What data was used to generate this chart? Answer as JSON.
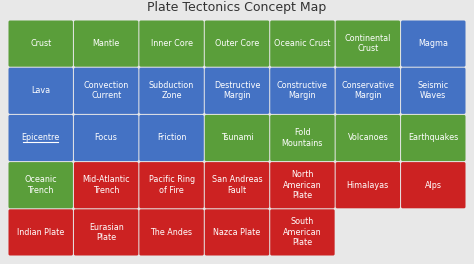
{
  "title": "Plate Tectonics Concept Map",
  "background_color": "#e8e8e8",
  "colors": {
    "green": "#5a9e3a",
    "blue": "#4472c4",
    "red": "#cc2222"
  },
  "rows": [
    {
      "items": [
        {
          "label": "Crust",
          "color": "green"
        },
        {
          "label": "Mantle",
          "color": "green"
        },
        {
          "label": "Inner Core",
          "color": "green"
        },
        {
          "label": "Outer Core",
          "color": "green"
        },
        {
          "label": "Oceanic Crust",
          "color": "green"
        },
        {
          "label": "Continental\nCrust",
          "color": "green"
        },
        {
          "label": "Magma",
          "color": "blue"
        }
      ]
    },
    {
      "items": [
        {
          "label": "Lava",
          "color": "blue"
        },
        {
          "label": "Convection\nCurrent",
          "color": "blue"
        },
        {
          "label": "Subduction\nZone",
          "color": "blue"
        },
        {
          "label": "Destructive\nMargin",
          "color": "blue"
        },
        {
          "label": "Constructive\nMargin",
          "color": "blue"
        },
        {
          "label": "Conservative\nMargin",
          "color": "blue"
        },
        {
          "label": "Seismic\nWaves",
          "color": "blue"
        }
      ]
    },
    {
      "items": [
        {
          "label": "Epicentre",
          "color": "blue",
          "underline": true
        },
        {
          "label": "Focus",
          "color": "blue"
        },
        {
          "label": "Friction",
          "color": "blue"
        },
        {
          "label": "Tsunami",
          "color": "green"
        },
        {
          "label": "Fold\nMountains",
          "color": "green"
        },
        {
          "label": "Volcanoes",
          "color": "green"
        },
        {
          "label": "Earthquakes",
          "color": "green"
        }
      ]
    },
    {
      "items": [
        {
          "label": "Oceanic\nTrench",
          "color": "green"
        },
        {
          "label": "Mid-Atlantic\nTrench",
          "color": "red"
        },
        {
          "label": "Pacific Ring\nof Fire",
          "color": "red"
        },
        {
          "label": "San Andreas\nFault",
          "color": "red"
        },
        {
          "label": "North\nAmerican\nPlate",
          "color": "red"
        },
        {
          "label": "Himalayas",
          "color": "red"
        },
        {
          "label": "Alps",
          "color": "red"
        }
      ]
    },
    {
      "items": [
        {
          "label": "Indian Plate",
          "color": "red"
        },
        {
          "label": "Eurasian\nPlate",
          "color": "red"
        },
        {
          "label": "The Andes",
          "color": "red"
        },
        {
          "label": "Nazca Plate",
          "color": "red"
        },
        {
          "label": "South\nAmerican\nPlate",
          "color": "red"
        },
        null,
        null
      ]
    }
  ],
  "n_cols": 7,
  "title_fontsize": 9,
  "label_fontsize": 5.8
}
